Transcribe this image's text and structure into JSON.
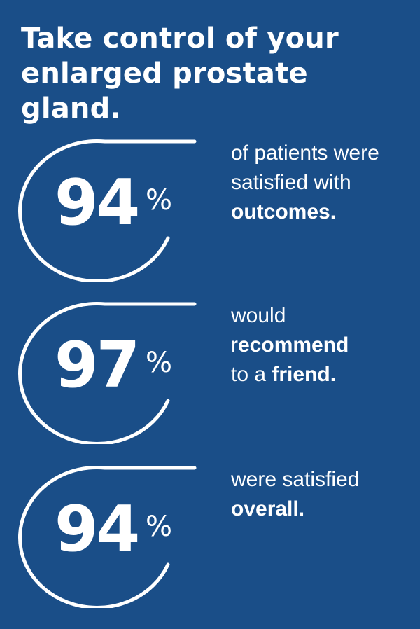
{
  "title": {
    "line1": "Take control of your",
    "line2": "enlarged prostate gland."
  },
  "stats": [
    {
      "number": "94",
      "percent_sign": "%",
      "desc": {
        "line1": "of patients were",
        "line2": "satisfied with",
        "line3_bold": "outcomes."
      }
    },
    {
      "number": "97",
      "percent_sign": "%",
      "desc": {
        "line1": "would",
        "line2_pre": "r",
        "line2_bold": "ecommend",
        "line3_pre": "to a ",
        "line3_bold": "friend."
      }
    },
    {
      "number": "94",
      "percent_sign": "%",
      "desc": {
        "line1": "were satisfied",
        "line2_bold": "overall."
      }
    }
  ],
  "colors": {
    "background": "#1a4e88",
    "text": "#ffffff"
  }
}
